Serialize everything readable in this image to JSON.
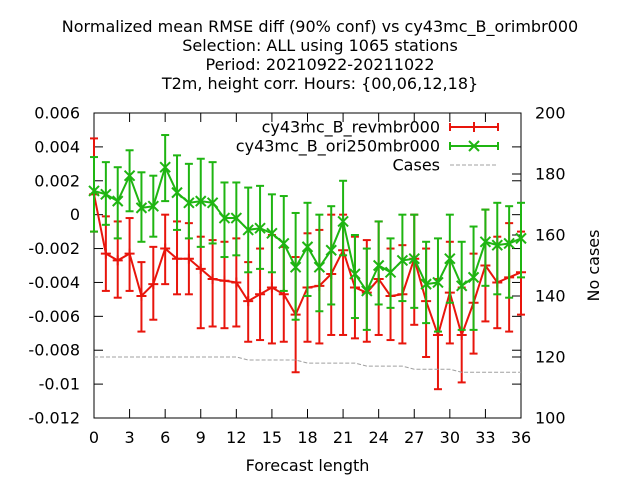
{
  "chart_data": {
    "type": "line",
    "title_lines": [
      "Normalized mean RMSE diff (90% conf) vs cy43mc_B_orimbr000",
      "Selection: ALL using  1065 stations",
      "Period: 20210922-20211022",
      "T2m, height corr.   Hours: {00,06,12,18}"
    ],
    "xlabel": "Forecast length",
    "ylabel_right": "No cases",
    "xlim": [
      0,
      36
    ],
    "ylim": [
      -0.012,
      0.006
    ],
    "y2lim": [
      100,
      200
    ],
    "x_ticks": [
      0,
      3,
      6,
      9,
      12,
      15,
      18,
      21,
      24,
      27,
      30,
      33,
      36
    ],
    "y_ticks": [
      -0.012,
      -0.01,
      -0.008,
      -0.006,
      -0.004,
      -0.002,
      0,
      0.002,
      0.004,
      0.006
    ],
    "y_tick_labels": [
      "-0.012",
      "-0.01",
      "-0.008",
      "-0.006",
      "-0.004",
      "-0.002",
      "0",
      "0.002",
      "0.004",
      "0.006"
    ],
    "y2_ticks": [
      100,
      120,
      140,
      160,
      180,
      200
    ],
    "x": [
      0,
      1,
      2,
      3,
      4,
      5,
      6,
      7,
      8,
      9,
      10,
      11,
      12,
      13,
      14,
      15,
      16,
      17,
      18,
      19,
      20,
      21,
      22,
      23,
      24,
      25,
      26,
      27,
      28,
      29,
      30,
      31,
      32,
      33,
      34,
      35,
      36
    ],
    "series": [
      {
        "name": "cy43mc_B_revmbr000",
        "color": "#e8150c",
        "marker": "plus",
        "values": [
          0.0012,
          -0.0023,
          -0.0027,
          -0.0023,
          -0.0048,
          -0.0041,
          -0.002,
          -0.0026,
          -0.0026,
          -0.0032,
          -0.0038,
          -0.0039,
          -0.004,
          -0.0051,
          -0.0047,
          -0.0043,
          -0.0047,
          -0.0059,
          -0.0043,
          -0.0042,
          -0.0035,
          -0.0021,
          -0.0043,
          -0.0046,
          -0.0038,
          -0.0048,
          -0.0047,
          -0.0026,
          -0.0051,
          -0.0071,
          -0.0046,
          -0.0071,
          -0.0052,
          -0.003,
          -0.004,
          -0.0037,
          -0.0034
        ],
        "err_low": [
          -0.001,
          -0.0045,
          -0.0049,
          -0.0045,
          -0.0069,
          -0.0062,
          -0.0041,
          -0.0047,
          -0.0047,
          -0.0067,
          -0.0066,
          -0.0067,
          -0.0066,
          -0.0075,
          -0.0074,
          -0.0076,
          -0.0075,
          -0.0093,
          -0.0075,
          -0.0076,
          -0.0071,
          -0.0071,
          -0.0073,
          -0.0075,
          -0.0071,
          -0.0074,
          -0.0076,
          -0.0065,
          -0.0084,
          -0.0103,
          -0.0076,
          -0.0099,
          -0.0082,
          -0.0063,
          -0.0067,
          -0.0069,
          -0.0059
        ],
        "err_high": [
          0.0045,
          -0.0001,
          -0.0004,
          -0.0002,
          -0.0028,
          -0.0019,
          0.0,
          -0.0004,
          -0.0005,
          -0.0013,
          -0.0015,
          -0.0016,
          -0.0014,
          -0.0028,
          -0.002,
          -0.0012,
          -0.0019,
          -0.0025,
          -0.0011,
          -0.0009,
          0.0,
          0.0,
          -0.0013,
          -0.0015,
          -0.0004,
          -0.002,
          -0.0018,
          0.0,
          -0.002,
          -0.0038,
          -0.0016,
          -0.0043,
          -0.0023,
          0.0003,
          -0.0013,
          -0.0005,
          -0.001
        ]
      },
      {
        "name": "cy43mc_B_ori250mbr000",
        "color": "#1fb512",
        "marker": "x",
        "values": [
          0.0014,
          0.0012,
          0.0008,
          0.0023,
          0.0004,
          0.0005,
          0.0028,
          0.0013,
          0.0007,
          0.0008,
          0.0007,
          -0.0002,
          -0.0002,
          -0.0009,
          -0.0008,
          -0.0011,
          -0.0017,
          -0.0031,
          -0.0019,
          -0.0031,
          -0.0021,
          -0.0004,
          -0.0035,
          -0.0045,
          -0.003,
          -0.0034,
          -0.0027,
          -0.0026,
          -0.0041,
          -0.004,
          -0.0026,
          -0.0042,
          -0.0037,
          -0.0016,
          -0.0018,
          -0.0017,
          -0.0014
        ],
        "err_low": [
          -0.001,
          -0.0006,
          -0.0014,
          0.0002,
          -0.0016,
          -0.0013,
          0.0008,
          -0.0009,
          -0.0014,
          -0.0019,
          -0.0017,
          -0.0025,
          -0.0024,
          -0.0034,
          -0.0032,
          -0.0034,
          -0.0045,
          -0.0062,
          -0.0048,
          -0.0057,
          -0.0053,
          -0.0024,
          -0.0061,
          -0.0068,
          -0.0053,
          -0.0055,
          -0.0051,
          -0.0055,
          -0.0064,
          -0.0069,
          -0.0052,
          -0.0068,
          -0.0068,
          -0.0042,
          -0.0047,
          -0.0049,
          -0.0037
        ],
        "err_high": [
          0.0034,
          0.0031,
          0.0028,
          0.0038,
          0.0025,
          0.0023,
          0.0047,
          0.0035,
          0.003,
          0.0033,
          0.0031,
          0.0019,
          0.0019,
          0.0016,
          0.0017,
          0.0012,
          0.0011,
          0.0001,
          0.0007,
          0.0,
          0.0005,
          0.002,
          -0.0012,
          -0.002,
          -0.0004,
          -0.0014,
          0.0,
          0.0,
          -0.0016,
          -0.0014,
          0.0,
          -0.0016,
          -0.0007,
          0.0003,
          0.0007,
          0.0005,
          0.0007
        ]
      },
      {
        "name": "Cases",
        "axis": "right",
        "color": "#a0a0a0",
        "style": "dashed",
        "values": [
          120,
          120,
          120,
          120,
          120,
          120,
          120,
          120,
          120,
          120,
          120,
          120,
          120,
          119,
          119,
          119,
          119,
          119,
          118,
          118,
          118,
          118,
          118,
          117,
          117,
          117,
          117,
          116,
          116,
          116,
          116,
          115,
          115,
          115,
          115,
          115,
          115
        ]
      }
    ],
    "legend_position": "top-right"
  }
}
